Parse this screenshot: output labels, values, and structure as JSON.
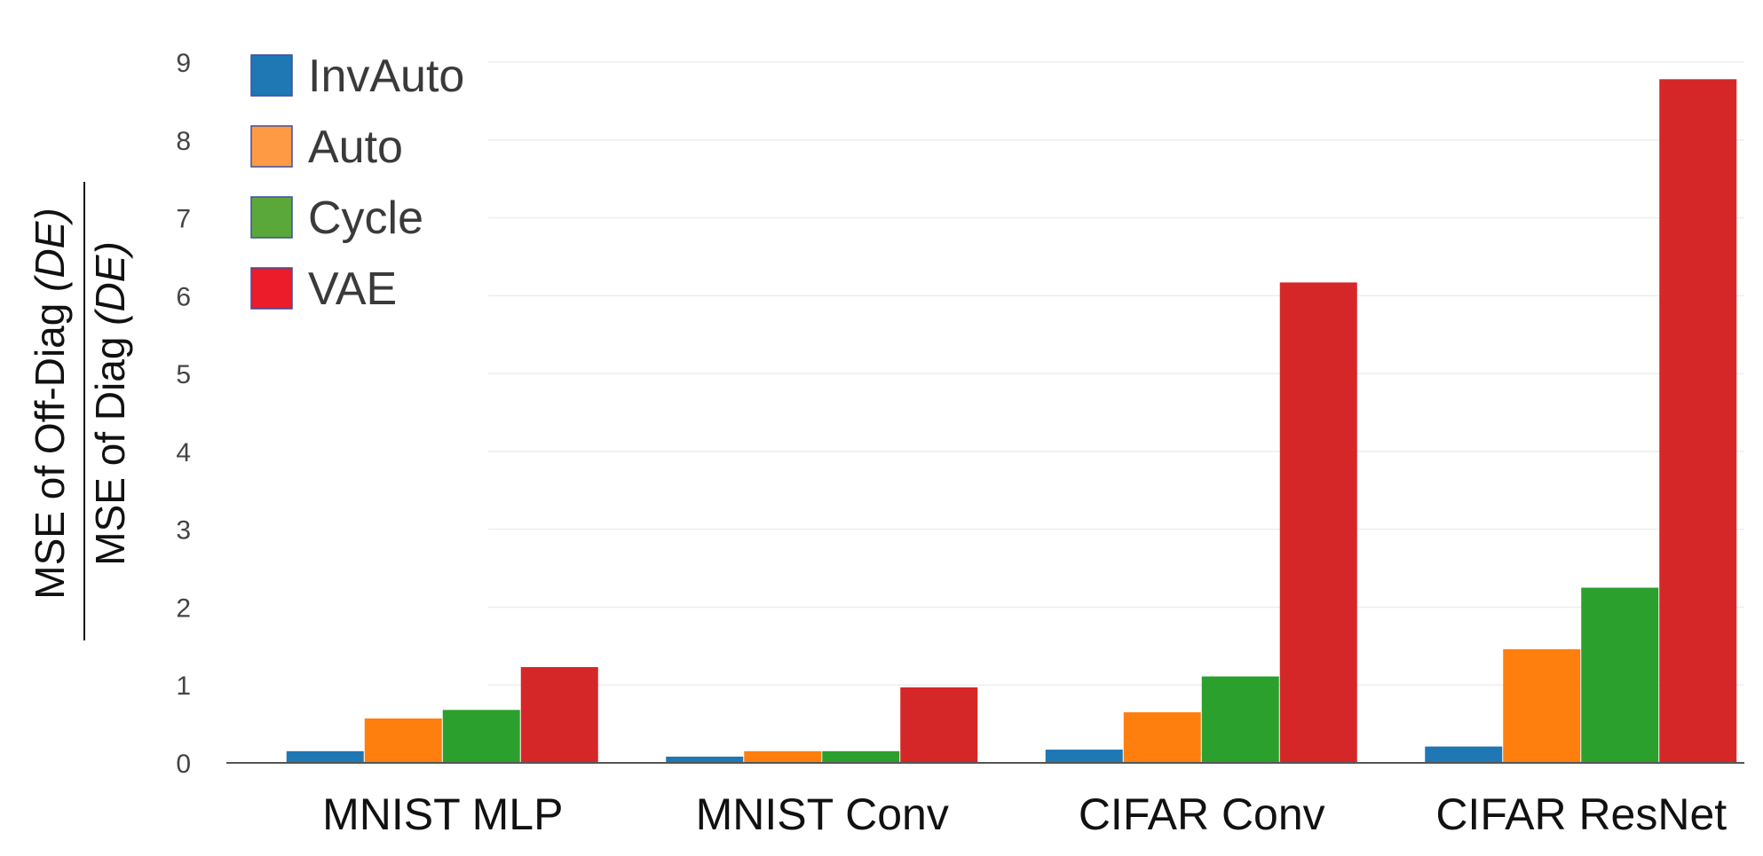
{
  "chart_data": {
    "type": "bar",
    "categories": [
      "MNIST MLP",
      "MNIST Conv",
      "CIFAR Conv",
      "CIFAR ResNet"
    ],
    "series": [
      {
        "name": "InvAuto",
        "color": "#1f77b4",
        "values": [
          0.15,
          0.08,
          0.17,
          0.21
        ]
      },
      {
        "name": "Auto",
        "color": "#ff7f0e",
        "values": [
          0.57,
          0.15,
          0.65,
          1.46
        ]
      },
      {
        "name": "Cycle",
        "color": "#2ca02c",
        "values": [
          0.68,
          0.15,
          1.11,
          2.25
        ]
      },
      {
        "name": "VAE",
        "color": "#d62728",
        "values": [
          1.23,
          0.97,
          6.17,
          8.78
        ]
      }
    ],
    "legend_markers": {
      "InvAuto": "#1f77b4",
      "Auto": "#ff9a44",
      "Cycle": "#5aa83a",
      "VAE": "#ec1c2a"
    },
    "ylabel": {
      "numerator": "MSE of Off-Diag ",
      "numerator_italic": "(DE)",
      "denominator": "MSE of Diag ",
      "denominator_italic": "(DE)"
    },
    "y_ticks": [
      "0",
      "1",
      "2",
      "3",
      "4",
      "5",
      "6",
      "7",
      "8",
      "9"
    ],
    "ylim": [
      0,
      9
    ],
    "grid": true,
    "legend_position": "top-left"
  }
}
